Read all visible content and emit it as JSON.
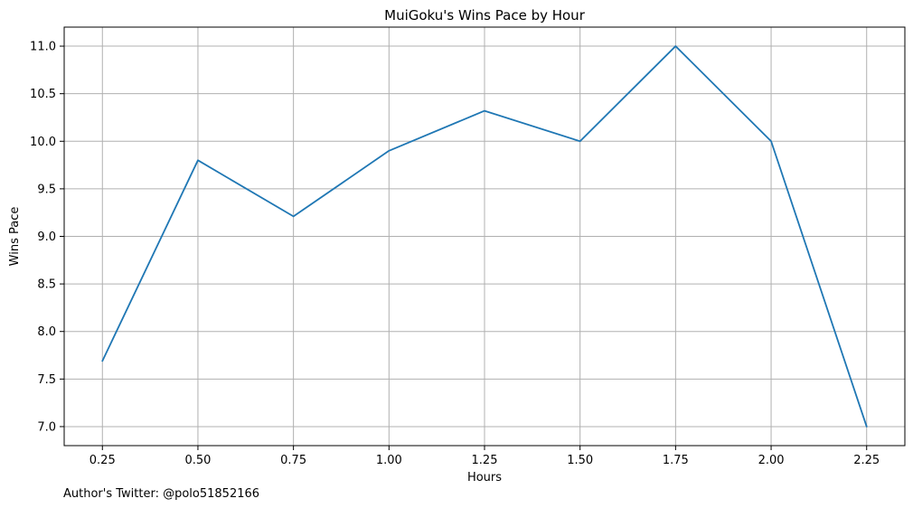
{
  "chart_data": {
    "type": "line",
    "title": "MuiGoku's Wins Pace by Hour",
    "xlabel": "Hours",
    "ylabel": "Wins Pace",
    "x": [
      0.25,
      0.5,
      0.75,
      1.0,
      1.25,
      1.5,
      1.75,
      2.0,
      2.25
    ],
    "series": [
      {
        "values": [
          7.69,
          9.8,
          9.21,
          9.9,
          10.32,
          10.0,
          11.0,
          10.0,
          7.0
        ],
        "color": "#1f77b4"
      }
    ],
    "xticks": [
      0.25,
      0.5,
      0.75,
      1.0,
      1.25,
      1.5,
      1.75,
      2.0,
      2.25
    ],
    "xtick_labels": [
      "0.25",
      "0.50",
      "0.75",
      "1.00",
      "1.25",
      "1.50",
      "1.75",
      "2.00",
      "2.25"
    ],
    "yticks": [
      7.0,
      7.5,
      8.0,
      8.5,
      9.0,
      9.5,
      10.0,
      10.5,
      11.0
    ],
    "ytick_labels": [
      "7.0",
      "7.5",
      "8.0",
      "8.5",
      "9.0",
      "9.5",
      "10.0",
      "10.5",
      "11.0"
    ],
    "xlim": [
      0.15,
      2.35
    ],
    "ylim": [
      6.8,
      11.2
    ],
    "grid": true,
    "legend": "none"
  },
  "footnote": "Author's Twitter: @polo51852166",
  "colors": {
    "line": "#1f77b4",
    "grid": "#b0b0b0",
    "axes": "#000000"
  }
}
